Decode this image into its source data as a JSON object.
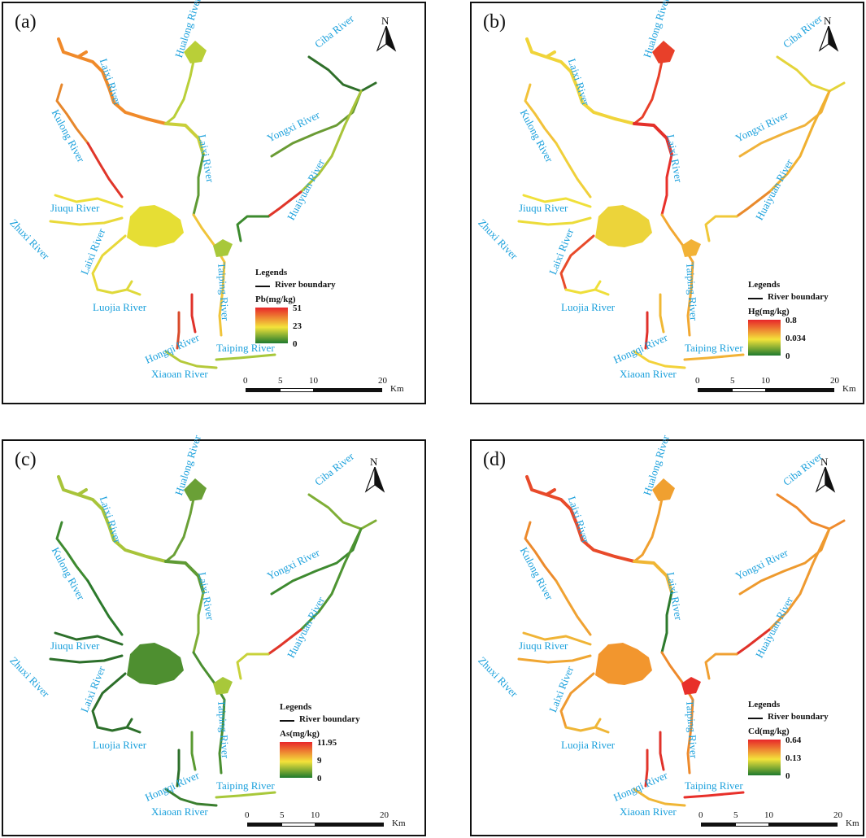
{
  "panels": [
    {
      "label": "(a)",
      "metal_label": "Pb(mg/kg)",
      "legend_max": "51",
      "legend_mid": "23",
      "legend_min": "0",
      "ramp_colors": [
        "#e8262a",
        "#f3e33a",
        "#1e7a2e"
      ],
      "lake_color": "#e6de34",
      "segment_colors": {
        "laixi_upper": "#f08a2a",
        "laixi_mid": "#c9cf3a",
        "laixi_lower": "#5e9a34",
        "hualong": "#b9cf38",
        "kulong": "#e7872c",
        "kulong_low": "#e0362a",
        "jiuqu": "#eddf3a",
        "zhuxi": "#e9d93a",
        "laixi_south": "#e8d83a",
        "luojia": "#dfd93a",
        "taiping": "#f0c43a",
        "taiping_red": "#e0322a",
        "hongqi": "#d84a2a",
        "xiaoan": "#b5c93a",
        "ciba": "#2f6f2a",
        "yongxi": "#6a9b34",
        "huaiyuan": "#a9c43a",
        "huaiyuan_red": "#e0362a",
        "outlet": "#a8c83a",
        "east_west": "#3c8a2e"
      }
    },
    {
      "label": "(b)",
      "metal_label": "Hg(mg/kg)",
      "legend_max": "0.8",
      "legend_mid": "0.034",
      "legend_min": "0",
      "ramp_colors": [
        "#e8262a",
        "#f3e33a",
        "#1e7a2e"
      ],
      "lake_color": "#ecd43a",
      "segment_colors": {
        "laixi_upper": "#f0d43a",
        "laixi_mid": "#e4302a",
        "laixi_lower": "#e8302a",
        "hualong": "#e8402a",
        "kulong": "#f2c23a",
        "kulong_low": "#f0d03a",
        "jiuqu": "#f0e03a",
        "zhuxi": "#ecdc3a",
        "laixi_south": "#e84a2a",
        "luojia": "#efdf3a",
        "taiping": "#f2a832",
        "taiping_red": "#f0b834",
        "hongqi": "#e0302a",
        "xiaoan": "#f3d23a",
        "ciba": "#e4d43a",
        "yongxi": "#f0b23a",
        "huaiyuan": "#f0b030",
        "huaiyuan_red": "#e98a2c",
        "outlet": "#f2b236",
        "east_west": "#f0c83a"
      }
    },
    {
      "label": "(c)",
      "metal_label": "As(mg/kg)",
      "legend_max": "11.95",
      "legend_mid": "9",
      "legend_min": "0",
      "ramp_colors": [
        "#e8262a",
        "#f3e33a",
        "#1e7a2e"
      ],
      "lake_color": "#4e8f30",
      "segment_colors": {
        "laixi_upper": "#a8c43a",
        "laixi_mid": "#5e9a34",
        "laixi_lower": "#7fae36",
        "hualong": "#6aa036",
        "kulong": "#3e8a30",
        "kulong_low": "#2c7a2c",
        "jiuqu": "#2c6f2a",
        "zhuxi": "#2c6f2a",
        "laixi_south": "#2c6f2a",
        "luojia": "#2c6f2a",
        "taiping": "#4a8f30",
        "taiping_red": "#5a9a32",
        "hongqi": "#2c6f2a",
        "xiaoan": "#3a7e2e",
        "ciba": "#7fae36",
        "yongxi": "#3e8a30",
        "huaiyuan": "#4e9432",
        "huaiyuan_red": "#e0362a",
        "outlet": "#a8c83a",
        "east_west": "#c8d23a"
      }
    },
    {
      "label": "(d)",
      "metal_label": "Cd(mg/kg)",
      "legend_max": "0.64",
      "legend_mid": "0.13",
      "legend_min": "0",
      "ramp_colors": [
        "#e8262a",
        "#f3e33a",
        "#1e7a2e"
      ],
      "lake_color": "#f2962e",
      "segment_colors": {
        "laixi_upper": "#e84a2a",
        "laixi_mid": "#f0b634",
        "laixi_lower": "#2c7a2c",
        "hualong": "#f0a030",
        "kulong": "#ec8a2c",
        "kulong_low": "#f0a232",
        "jiuqu": "#f0b436",
        "zhuxi": "#f0a632",
        "laixi_south": "#ef9a30",
        "luojia": "#efb636",
        "taiping": "#ee8a2c",
        "taiping_red": "#e0322a",
        "hongqi": "#e2342a",
        "xiaoan": "#f0b636",
        "ciba": "#ef8a2c",
        "yongxi": "#ee9a2e",
        "huaiyuan": "#ef9a30",
        "huaiyuan_red": "#e0322a",
        "outlet": "#e8302a",
        "east_west": "#f0a032"
      }
    }
  ],
  "rivers": {
    "laixi_1": "Laixi River",
    "hualong": "Hualong River",
    "kulong": "Kulong River",
    "laixi_2": "Laixi River",
    "ciba": "Ciba River",
    "yongxi": "Yongxi River",
    "huaiyuan": "Huaiyuan River",
    "jiuqu": "Jiuqu River",
    "zhuxi": "Zhuxi River",
    "laixi_3": "Laixi River",
    "luojia": "Luojia River",
    "taiping_1": "Taiping River",
    "hongqi": "Hongqi River",
    "taiping_2": "Taiping River",
    "xiaoan": "Xiaoan River"
  },
  "legend": {
    "title": "Legends",
    "boundary_label": "River boundary"
  },
  "north_label": "N",
  "scale": {
    "ticks": [
      "0",
      "5",
      "10",
      "20"
    ],
    "unit": "Km"
  }
}
